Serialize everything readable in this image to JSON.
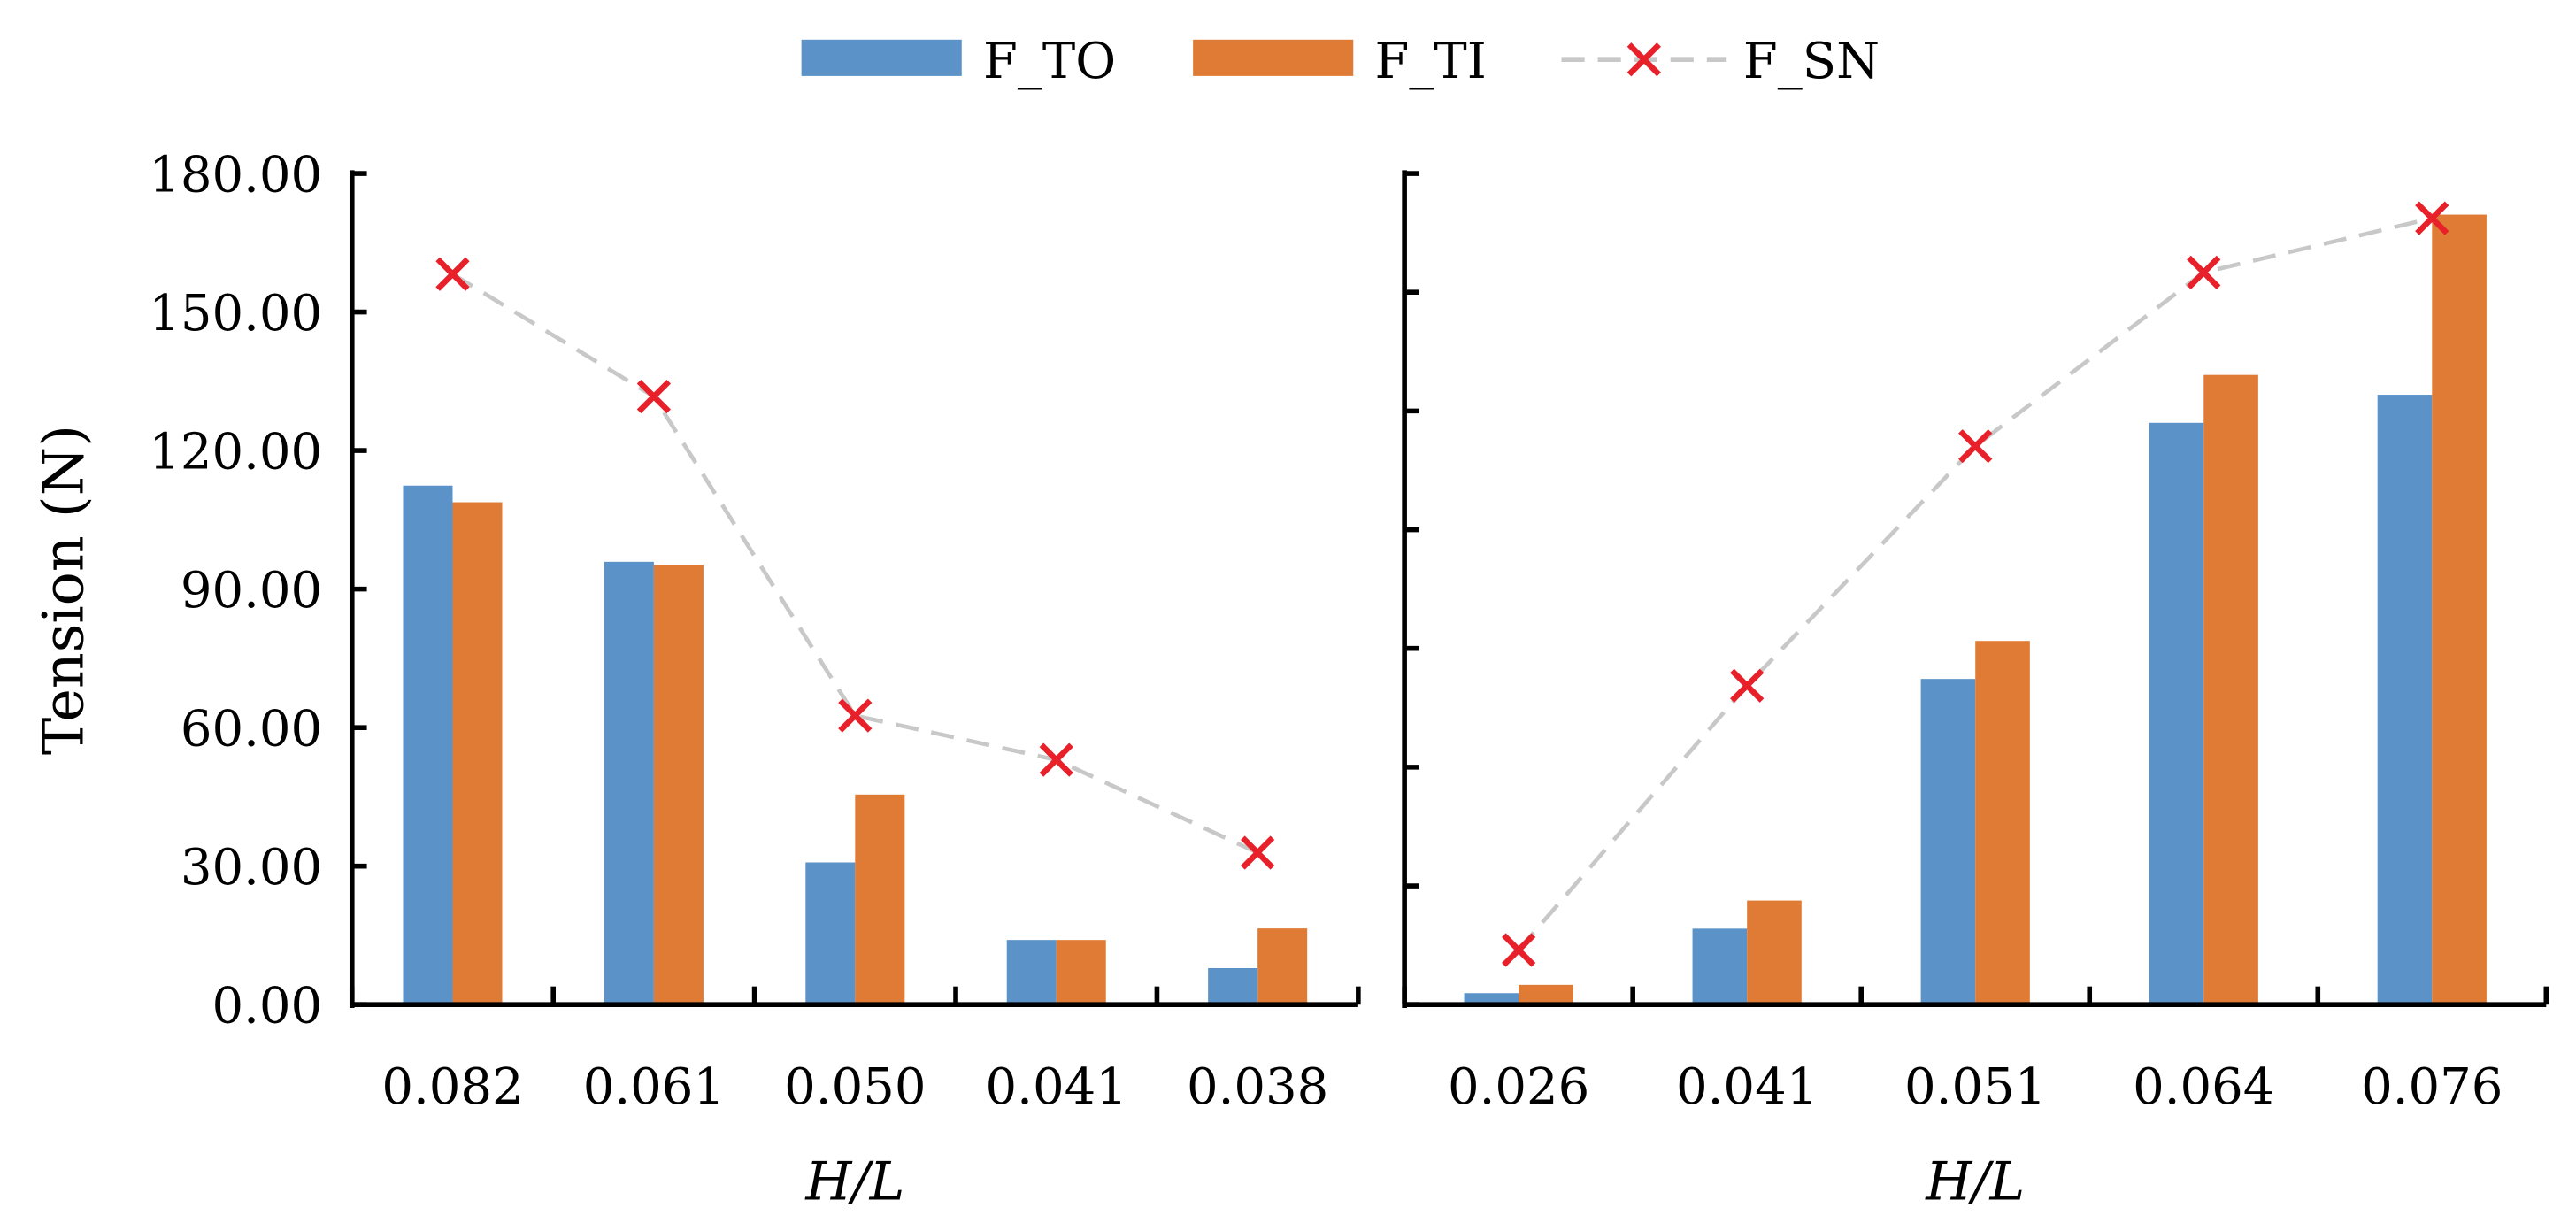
{
  "legend": [
    {
      "name": "F_TO",
      "color": "#5B93C8",
      "kind": "bar"
    },
    {
      "name": "F_TI",
      "color": "#E07B35",
      "kind": "bar"
    },
    {
      "name": "F_SN",
      "color": "#E8202A",
      "kind": "line-marker",
      "line_color": "#C8C8C8"
    }
  ],
  "chart_data": [
    {
      "type": "bar",
      "ylabel": "Tension (N)",
      "xlabel": "H/L",
      "ylim": [
        0,
        180
      ],
      "yticks": [
        "0.00",
        "30.00",
        "60.00",
        "90.00",
        "120.00",
        "150.00",
        "180.00"
      ],
      "categories": [
        "0.082",
        "0.061",
        "0.050",
        "0.041",
        "0.038"
      ],
      "series": [
        {
          "name": "F_TO",
          "type": "bar",
          "values": [
            112.4,
            95.9,
            30.8,
            14.0,
            7.9
          ]
        },
        {
          "name": "F_TI",
          "type": "bar",
          "values": [
            108.8,
            95.2,
            45.5,
            14.0,
            16.5
          ]
        },
        {
          "name": "F_SN",
          "type": "line",
          "values": [
            158.2,
            131.7,
            62.6,
            53.0,
            32.9
          ]
        }
      ],
      "grid": false,
      "legend_position": "top"
    },
    {
      "type": "bar",
      "xlabel": "H/L",
      "ylim": [
        0,
        210
      ],
      "ytick_count": 8,
      "categories": [
        "0.026",
        "0.041",
        "0.051",
        "0.064",
        "0.076"
      ],
      "series": [
        {
          "name": "F_TO",
          "type": "bar",
          "values": [
            2.9,
            19.2,
            82.3,
            147.0,
            154.1
          ]
        },
        {
          "name": "F_TI",
          "type": "bar",
          "values": [
            5.0,
            26.3,
            91.9,
            159.1,
            199.6
          ]
        },
        {
          "name": "F_SN",
          "type": "line",
          "values": [
            13.8,
            80.6,
            141.1,
            185.0,
            198.7
          ]
        }
      ],
      "grid": false
    }
  ]
}
